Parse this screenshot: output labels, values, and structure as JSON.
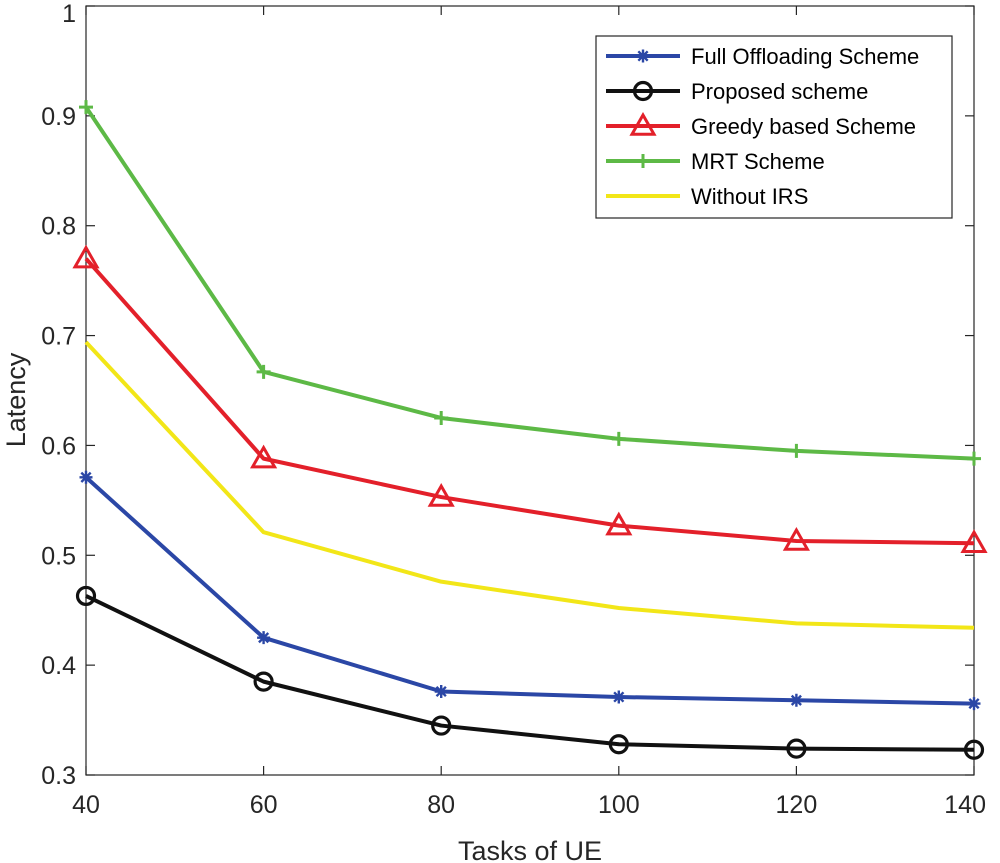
{
  "chart_data": {
    "type": "line",
    "title": "",
    "xlabel": "Tasks of UE",
    "ylabel": "Latency",
    "x": [
      40,
      60,
      80,
      100,
      120,
      140
    ],
    "xlim": [
      40,
      140
    ],
    "ylim": [
      0.3,
      1.0
    ],
    "xticks": [
      "40",
      "60",
      "80",
      "100",
      "120",
      "140"
    ],
    "yticks": [
      "0.3",
      "0.4",
      "0.5",
      "0.6",
      "0.7",
      "0.8",
      "0.9",
      "1"
    ],
    "grid": false,
    "legend_position": "top-right",
    "series": [
      {
        "name": "Full Offloading Scheme",
        "color": "#2b47a6",
        "marker": "asterisk",
        "values": [
          0.571,
          0.425,
          0.376,
          0.371,
          0.368,
          0.365
        ]
      },
      {
        "name": "Proposed scheme",
        "color": "#111111",
        "marker": "circle",
        "values": [
          0.463,
          0.385,
          0.345,
          0.328,
          0.324,
          0.323
        ]
      },
      {
        "name": "Greedy based Scheme",
        "color": "#e3202a",
        "marker": "triangle",
        "values": [
          0.77,
          0.588,
          0.553,
          0.527,
          0.513,
          0.511
        ]
      },
      {
        "name": "MRT Scheme",
        "color": "#5db946",
        "marker": "plus",
        "values": [
          0.908,
          0.667,
          0.625,
          0.606,
          0.595,
          0.588
        ]
      },
      {
        "name": "Without IRS",
        "color": "#f2e618",
        "marker": "none",
        "values": [
          0.694,
          0.521,
          0.476,
          0.452,
          0.438,
          0.434
        ]
      }
    ]
  }
}
